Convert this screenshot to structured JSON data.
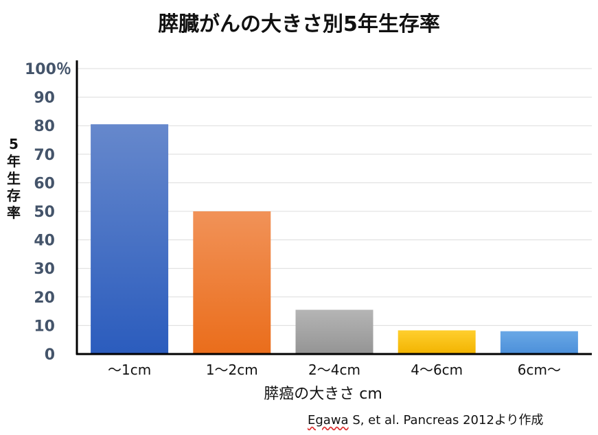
{
  "chart_data": {
    "type": "bar",
    "title": "膵臓がんの大きさ別5年生存率",
    "ylabel": "5年生存率",
    "xlabel": "膵癌の大きさ cm",
    "categories": [
      "～1cm",
      "1～2cm",
      "2～4cm",
      "4～6cm",
      "6cm～"
    ],
    "values": [
      80.5,
      50,
      15.5,
      8.3,
      8
    ],
    "ylim": [
      0,
      100
    ],
    "yticks": [
      {
        "value": 0,
        "label": "0"
      },
      {
        "value": 10,
        "label": "10"
      },
      {
        "value": 20,
        "label": "20"
      },
      {
        "value": 30,
        "label": "30"
      },
      {
        "value": 40,
        "label": "40"
      },
      {
        "value": 50,
        "label": "50"
      },
      {
        "value": 60,
        "label": "60"
      },
      {
        "value": 70,
        "label": "70"
      },
      {
        "value": 80,
        "label": "80"
      },
      {
        "value": 90,
        "label": "90"
      },
      {
        "value": 100,
        "label": "100％"
      }
    ],
    "grid": true,
    "bar_colors": [
      {
        "top": "#6688cc",
        "bottom": "#2b5cbd"
      },
      {
        "top": "#f19258",
        "bottom": "#ea6d1b"
      },
      {
        "top": "#b5b5b5",
        "bottom": "#949494"
      },
      {
        "top": "#ffcf2e",
        "bottom": "#f2b300"
      },
      {
        "top": "#6aa8e6",
        "bottom": "#4b8fd9"
      }
    ],
    "tick_label_color": "#44546a"
  },
  "source": {
    "author": "Egawa",
    "rest": " S, et al. Pancreas 2012より作成"
  }
}
